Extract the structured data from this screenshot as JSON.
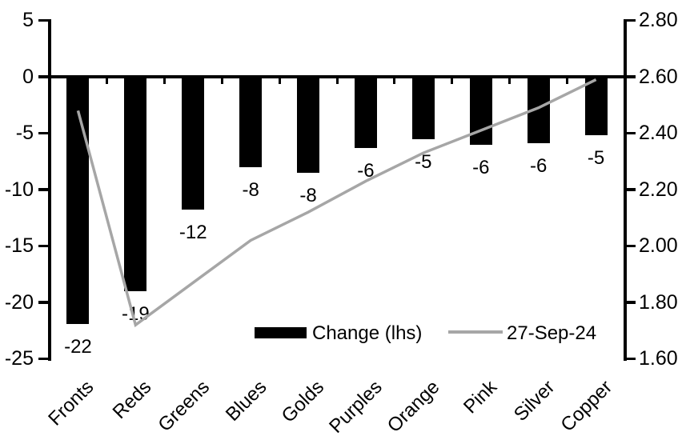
{
  "chart_data": {
    "type": "bar+line dual-axis",
    "categories": [
      "Fronts",
      "Reds",
      "Greens",
      "Blues",
      "Golds",
      "Purples",
      "Orange",
      "Pink",
      "Silver",
      "Copper"
    ],
    "series": [
      {
        "name": "Change (lhs)",
        "type": "bar",
        "axis": "left",
        "color": "#000000",
        "values": [
          -21.9,
          -19.0,
          -11.8,
          -8.0,
          -8.5,
          -6.3,
          -5.5,
          -6.0,
          -5.9,
          -5.2
        ],
        "data_labels": [
          "-22",
          "-19",
          "-12",
          "-8",
          "-8",
          "-6",
          "-5",
          "-6",
          "-6",
          "-5"
        ]
      },
      {
        "name": "27-Sep-24",
        "type": "line",
        "axis": "right",
        "color": "#a6a6a6",
        "values": [
          2.48,
          1.72,
          1.87,
          2.02,
          2.12,
          2.23,
          2.33,
          2.41,
          2.49,
          2.59
        ]
      }
    ],
    "left_axis": {
      "tick_labels": [
        "5",
        "0",
        "-5",
        "-10",
        "-15",
        "-20",
        "-25"
      ],
      "max": 5,
      "min": -25
    },
    "right_axis": {
      "tick_labels": [
        "2.80",
        "2.60",
        "2.40",
        "2.20",
        "2.00",
        "1.80",
        "1.60"
      ],
      "max": 2.8,
      "min": 1.6
    },
    "legend": {
      "position": "bottom-inside",
      "entries": [
        "Change (lhs)",
        "27-Sep-24"
      ]
    },
    "grid": "off",
    "background": "#ffffff"
  }
}
